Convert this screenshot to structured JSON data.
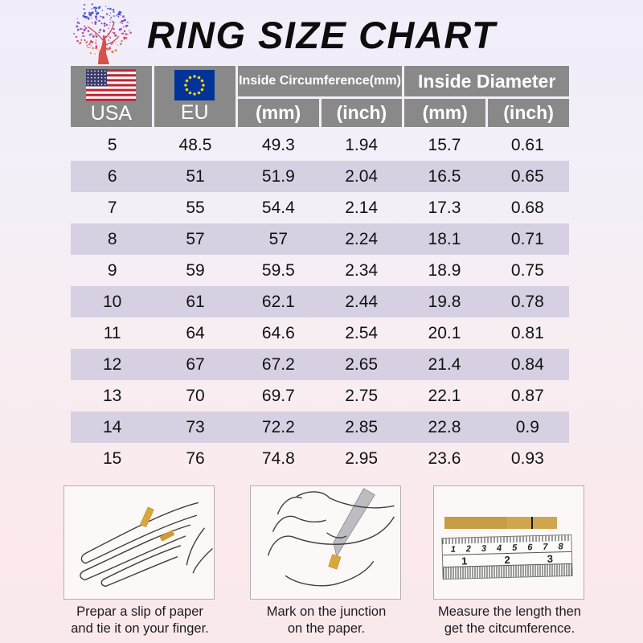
{
  "header": {
    "title": "RING SIZE CHART",
    "logo": "tree-logo"
  },
  "table_header": {
    "usa": "USA",
    "eu": "EU",
    "circumference": "Inside Circumference(mm)",
    "diameter": "Inside Diameter",
    "mm": "(mm)",
    "inch": "(inch)"
  },
  "chart_data": {
    "type": "table",
    "title": "RING SIZE CHART",
    "column_groups": [
      {
        "label": "USA"
      },
      {
        "label": "EU"
      },
      {
        "label": "Inside Circumference(mm)",
        "sub": [
          "(mm)",
          "(inch)"
        ]
      },
      {
        "label": "Inside Diameter",
        "sub": [
          "(mm)",
          "(inch)"
        ]
      }
    ],
    "rows": [
      [
        "5",
        "48.5",
        "49.3",
        "1.94",
        "15.7",
        "0.61"
      ],
      [
        "6",
        "51",
        "51.9",
        "2.04",
        "16.5",
        "0.65"
      ],
      [
        "7",
        "55",
        "54.4",
        "2.14",
        "17.3",
        "0.68"
      ],
      [
        "8",
        "57",
        "57",
        "2.24",
        "18.1",
        "0.71"
      ],
      [
        "9",
        "59",
        "59.5",
        "2.34",
        "18.9",
        "0.75"
      ],
      [
        "10",
        "61",
        "62.1",
        "2.44",
        "19.8",
        "0.78"
      ],
      [
        "11",
        "64",
        "64.6",
        "2.54",
        "20.1",
        "0.81"
      ],
      [
        "12",
        "67",
        "67.2",
        "2.65",
        "21.4",
        "0.84"
      ],
      [
        "13",
        "70",
        "69.7",
        "2.75",
        "22.1",
        "0.87"
      ],
      [
        "14",
        "73",
        "72.2",
        "2.85",
        "22.8",
        "0.9"
      ],
      [
        "15",
        "76",
        "74.8",
        "2.95",
        "23.6",
        "0.93"
      ]
    ]
  },
  "instructions": [
    {
      "line1": "Prepar a slip of paper",
      "line2": "and tie it on your finger."
    },
    {
      "line1": "Mark on the junction",
      "line2": "on the paper."
    },
    {
      "line1": "Measure the length then",
      "line2": "get the citcumference."
    }
  ],
  "ruler": {
    "cm_numbers": [
      "1",
      "2",
      "3",
      "4",
      "5",
      "6",
      "7",
      "8"
    ],
    "inch_numbers": [
      "1",
      "2",
      "3"
    ]
  },
  "colors": {
    "header_gray": "#898989",
    "stripe_lavender": "#d7d0e3",
    "paper_tan": "#c9a148",
    "us_flag_red": "#bf2333",
    "us_flag_blue": "#3c3b6e",
    "eu_blue": "#003399",
    "eu_star_yellow": "#ffcc00"
  }
}
